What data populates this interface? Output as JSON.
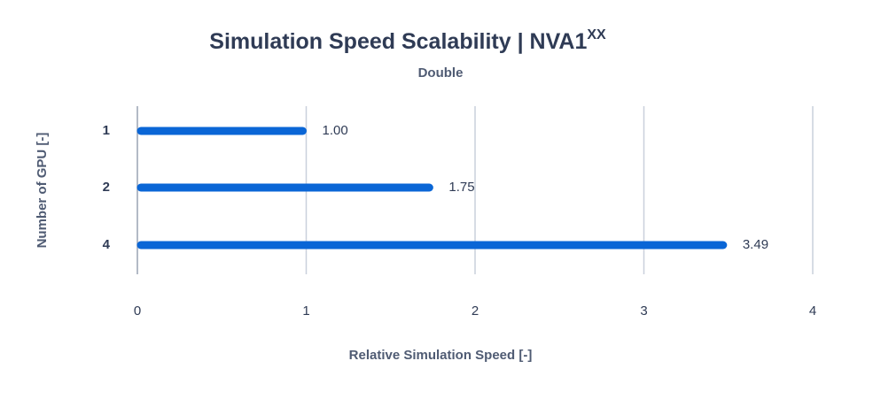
{
  "chart_data": {
    "type": "hbar",
    "title": "Simulation Speed Scalability | NVA1",
    "title_superscript": "XX",
    "subtitle": "Double",
    "x_label": "Relative Simulation Speed [-]",
    "y_label": "Number of GPU [-]",
    "categories": [
      "1",
      "2",
      "4"
    ],
    "values": [
      1,
      1.75,
      3.49
    ],
    "value_labels": [
      "1.00",
      "1.75",
      "3.49"
    ],
    "color": "#0a66d6",
    "xlim": [
      0,
      4
    ],
    "xticks": [
      0,
      1,
      2,
      3,
      4
    ],
    "grid": true
  }
}
